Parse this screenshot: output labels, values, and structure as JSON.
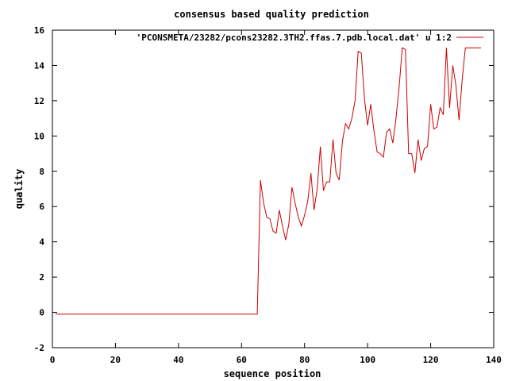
{
  "chart_data": {
    "type": "line",
    "title": "consensus based quality prediction",
    "xlabel": "sequence position",
    "ylabel": "quality",
    "xlim": [
      0,
      140
    ],
    "ylim": [
      -2,
      16
    ],
    "xticks": [
      0,
      20,
      40,
      60,
      80,
      100,
      120,
      140
    ],
    "yticks": [
      -2,
      0,
      2,
      4,
      6,
      8,
      10,
      12,
      14,
      16
    ],
    "grid": false,
    "legend_position": "top-right",
    "series": [
      {
        "name": "'PCONSMETA/23282/pcons23282.3TH2.ffas.7.pdb.local.dat' u 1:2",
        "color": "#cc0000",
        "points": [
          [
            1,
            -0.1
          ],
          [
            2,
            -0.1
          ],
          [
            3,
            -0.1
          ],
          [
            4,
            -0.1
          ],
          [
            5,
            -0.1
          ],
          [
            6,
            -0.1
          ],
          [
            7,
            -0.1
          ],
          [
            8,
            -0.1
          ],
          [
            9,
            -0.1
          ],
          [
            10,
            -0.1
          ],
          [
            11,
            -0.1
          ],
          [
            12,
            -0.1
          ],
          [
            13,
            -0.1
          ],
          [
            14,
            -0.1
          ],
          [
            15,
            -0.1
          ],
          [
            16,
            -0.1
          ],
          [
            17,
            -0.1
          ],
          [
            18,
            -0.1
          ],
          [
            19,
            -0.1
          ],
          [
            20,
            -0.1
          ],
          [
            21,
            -0.1
          ],
          [
            22,
            -0.1
          ],
          [
            23,
            -0.1
          ],
          [
            24,
            -0.1
          ],
          [
            25,
            -0.1
          ],
          [
            26,
            -0.1
          ],
          [
            27,
            -0.1
          ],
          [
            28,
            -0.1
          ],
          [
            29,
            -0.1
          ],
          [
            30,
            -0.1
          ],
          [
            31,
            -0.1
          ],
          [
            32,
            -0.1
          ],
          [
            33,
            -0.1
          ],
          [
            34,
            -0.1
          ],
          [
            35,
            -0.1
          ],
          [
            36,
            -0.1
          ],
          [
            37,
            -0.1
          ],
          [
            38,
            -0.1
          ],
          [
            39,
            -0.1
          ],
          [
            40,
            -0.1
          ],
          [
            41,
            -0.1
          ],
          [
            42,
            -0.1
          ],
          [
            43,
            -0.1
          ],
          [
            44,
            -0.1
          ],
          [
            45,
            -0.1
          ],
          [
            46,
            -0.1
          ],
          [
            47,
            -0.1
          ],
          [
            48,
            -0.1
          ],
          [
            49,
            -0.1
          ],
          [
            50,
            -0.1
          ],
          [
            51,
            -0.1
          ],
          [
            52,
            -0.1
          ],
          [
            53,
            -0.1
          ],
          [
            54,
            -0.1
          ],
          [
            55,
            -0.1
          ],
          [
            56,
            -0.1
          ],
          [
            57,
            -0.1
          ],
          [
            58,
            -0.1
          ],
          [
            59,
            -0.1
          ],
          [
            60,
            -0.1
          ],
          [
            61,
            -0.1
          ],
          [
            62,
            -0.1
          ],
          [
            63,
            -0.1
          ],
          [
            64,
            -0.1
          ],
          [
            65,
            -0.1
          ],
          [
            66,
            7.5
          ],
          [
            67,
            6.2
          ],
          [
            68,
            5.4
          ],
          [
            69,
            5.3
          ],
          [
            70,
            4.6
          ],
          [
            71,
            4.5
          ],
          [
            72,
            5.8
          ],
          [
            73,
            4.9
          ],
          [
            74,
            4.1
          ],
          [
            75,
            5.0
          ],
          [
            76,
            7.1
          ],
          [
            77,
            6.2
          ],
          [
            78,
            5.4
          ],
          [
            79,
            4.9
          ],
          [
            80,
            5.5
          ],
          [
            81,
            6.3
          ],
          [
            82,
            7.9
          ],
          [
            83,
            5.8
          ],
          [
            84,
            7.0
          ],
          [
            85,
            9.4
          ],
          [
            86,
            6.9
          ],
          [
            87,
            7.4
          ],
          [
            88,
            7.4
          ],
          [
            89,
            9.8
          ],
          [
            90,
            7.9
          ],
          [
            91,
            7.5
          ],
          [
            92,
            9.7
          ],
          [
            93,
            10.7
          ],
          [
            94,
            10.4
          ],
          [
            95,
            11.0
          ],
          [
            96,
            12.0
          ],
          [
            97,
            14.8
          ],
          [
            98,
            14.7
          ],
          [
            99,
            12.1
          ],
          [
            100,
            10.6
          ],
          [
            101,
            11.8
          ],
          [
            102,
            10.3
          ],
          [
            103,
            9.1
          ],
          [
            104,
            9.0
          ],
          [
            105,
            8.8
          ],
          [
            106,
            10.2
          ],
          [
            107,
            10.4
          ],
          [
            108,
            9.6
          ],
          [
            109,
            11.0
          ],
          [
            110,
            12.8
          ],
          [
            111,
            15.0
          ],
          [
            112,
            14.9
          ],
          [
            113,
            9.0
          ],
          [
            114,
            9.0
          ],
          [
            115,
            7.9
          ],
          [
            116,
            9.8
          ],
          [
            117,
            8.6
          ],
          [
            118,
            9.3
          ],
          [
            119,
            9.4
          ],
          [
            120,
            11.8
          ],
          [
            121,
            10.4
          ],
          [
            122,
            10.5
          ],
          [
            123,
            11.6
          ],
          [
            124,
            11.2
          ],
          [
            125,
            15.0
          ],
          [
            126,
            11.6
          ],
          [
            127,
            14.0
          ],
          [
            128,
            12.9
          ],
          [
            129,
            10.9
          ],
          [
            130,
            13.2
          ],
          [
            131,
            15.0
          ],
          [
            132,
            15.0
          ],
          [
            133,
            15.0
          ],
          [
            134,
            15.0
          ],
          [
            135,
            15.0
          ],
          [
            136,
            15.0
          ]
        ]
      }
    ]
  }
}
